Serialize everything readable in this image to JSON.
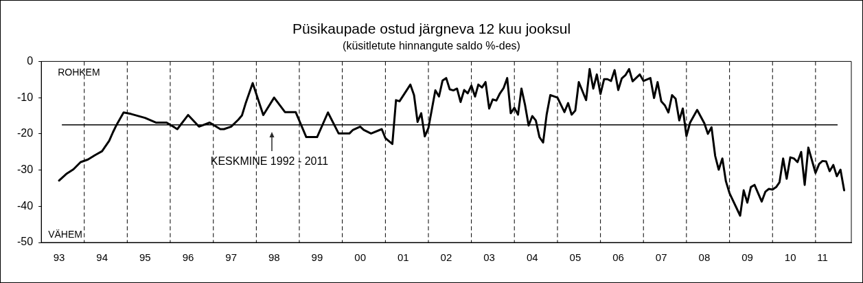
{
  "chart_data": {
    "type": "line",
    "title": "Püsikaupade ostud järgneva 12 kuu jooksul",
    "subtitle": "(küsitletute hinnangute saldo %-des)",
    "annotations": [
      "ROHKEM",
      "VÄHEM"
    ],
    "xlim": [
      "1993-01",
      "2011-11"
    ],
    "xticks": [
      {
        "value": "1993-06",
        "label": "93"
      },
      {
        "value": "1994-06",
        "label": "94"
      },
      {
        "value": "1995-06",
        "label": "95"
      },
      {
        "value": "1996-06",
        "label": "96"
      },
      {
        "value": "1997-06",
        "label": "97"
      },
      {
        "value": "1998-06",
        "label": "98"
      },
      {
        "value": "1999-06",
        "label": "99"
      },
      {
        "value": "2000-06",
        "label": "00"
      },
      {
        "value": "2001-06",
        "label": "01"
      },
      {
        "value": "2002-06",
        "label": "02"
      },
      {
        "value": "2003-06",
        "label": "03"
      },
      {
        "value": "2004-06",
        "label": "04"
      },
      {
        "value": "2005-06",
        "label": "05"
      },
      {
        "value": "2006-06",
        "label": "06"
      },
      {
        "value": "2007-06",
        "label": "07"
      },
      {
        "value": "2008-06",
        "label": "08"
      },
      {
        "value": "2009-06",
        "label": "09"
      },
      {
        "value": "2010-06",
        "label": "10"
      },
      {
        "value": "2011-03",
        "label": "11"
      }
    ],
    "ylim": [
      -50,
      0
    ],
    "yticks": [
      -50,
      -40,
      -30,
      -20,
      -10,
      0
    ],
    "legend": false,
    "marker": "none",
    "line_style": "solid",
    "ref_lines": [
      {
        "axis": "y",
        "value": -17.5,
        "label": "KESKMINE 1992 - 2011",
        "line_style": "solid",
        "color": "#000000"
      },
      {
        "axis": "x",
        "value": "1994-01",
        "line_style": "dashed",
        "color": "#000000"
      },
      {
        "axis": "x",
        "value": "1995-01",
        "line_style": "dashed",
        "color": "#000000"
      },
      {
        "axis": "x",
        "value": "1996-01",
        "line_style": "dashed",
        "color": "#000000"
      },
      {
        "axis": "x",
        "value": "1997-01",
        "line_style": "dashed",
        "color": "#000000"
      },
      {
        "axis": "x",
        "value": "1998-01",
        "line_style": "dashed",
        "color": "#000000"
      },
      {
        "axis": "x",
        "value": "1999-01",
        "line_style": "dashed",
        "color": "#000000"
      },
      {
        "axis": "x",
        "value": "2000-01",
        "line_style": "dashed",
        "color": "#000000"
      },
      {
        "axis": "x",
        "value": "2001-01",
        "line_style": "dashed",
        "color": "#000000"
      },
      {
        "axis": "x",
        "value": "2002-01",
        "line_style": "dashed",
        "color": "#000000"
      },
      {
        "axis": "x",
        "value": "2003-01",
        "line_style": "dashed",
        "color": "#000000"
      },
      {
        "axis": "x",
        "value": "2004-01",
        "line_style": "dashed",
        "color": "#000000"
      },
      {
        "axis": "x",
        "value": "2005-01",
        "line_style": "dashed",
        "color": "#000000"
      },
      {
        "axis": "x",
        "value": "2006-01",
        "line_style": "dashed",
        "color": "#000000"
      },
      {
        "axis": "x",
        "value": "2007-01",
        "line_style": "dashed",
        "color": "#000000"
      },
      {
        "axis": "x",
        "value": "2008-01",
        "line_style": "dashed",
        "color": "#000000"
      },
      {
        "axis": "x",
        "value": "2009-01",
        "line_style": "dashed",
        "color": "#000000"
      },
      {
        "axis": "x",
        "value": "2010-01",
        "line_style": "dashed",
        "color": "#000000"
      },
      {
        "axis": "x",
        "value": "2011-01",
        "line_style": "dashed",
        "color": "#000000"
      }
    ],
    "series": [
      {
        "color": "#000000",
        "x": [
          "1993-06",
          "1993-08",
          "1993-10",
          "1993-12",
          "1994-02",
          "1994-04",
          "1994-06",
          "1994-08",
          "1994-09",
          "1994-10",
          "1994-12",
          "1995-02",
          "1995-06",
          "1995-09",
          "1995-12",
          "1996-03",
          "1996-06",
          "1996-09",
          "1996-12",
          "1997-03",
          "1997-04",
          "1997-06",
          "1997-08",
          "1997-09",
          "1997-10",
          "1997-12",
          "1998-03",
          "1998-06",
          "1998-09",
          "1998-12",
          "1999-03",
          "1999-06",
          "1999-09",
          "1999-12",
          "2000-03",
          "2000-04",
          "2000-06",
          "2000-07",
          "2000-09",
          "2000-12",
          "2001-01",
          "2001-03",
          "2001-04",
          "2001-05",
          "2001-08",
          "2001-09",
          "2001-10",
          "2001-11",
          "2001-12",
          "2002-01",
          "2002-03",
          "2002-04",
          "2002-05",
          "2002-06",
          "2002-07",
          "2002-08",
          "2002-09",
          "2002-10",
          "2002-11",
          "2002-12",
          "2003-01",
          "2003-02",
          "2003-03",
          "2003-04",
          "2003-05",
          "2003-06",
          "2003-07",
          "2003-08",
          "2003-09",
          "2003-10",
          "2003-11",
          "2003-12",
          "2004-01",
          "2004-02",
          "2004-03",
          "2004-04",
          "2004-05",
          "2004-06",
          "2004-07",
          "2004-08",
          "2004-09",
          "2004-10",
          "2004-11",
          "2005-01",
          "2005-03",
          "2005-04",
          "2005-05",
          "2005-06",
          "2005-07",
          "2005-09",
          "2005-10",
          "2005-11",
          "2005-12",
          "2006-01",
          "2006-02",
          "2006-03",
          "2006-04",
          "2006-05",
          "2006-06",
          "2006-07",
          "2006-08",
          "2006-09",
          "2006-10",
          "2006-12",
          "2007-01",
          "2007-03",
          "2007-04",
          "2007-05",
          "2007-06",
          "2007-07",
          "2007-08",
          "2007-09",
          "2007-10",
          "2007-11",
          "2007-12",
          "2008-01",
          "2008-02",
          "2008-04",
          "2008-06",
          "2008-07",
          "2008-08",
          "2008-09",
          "2008-10",
          "2008-11",
          "2008-12",
          "2009-01",
          "2009-04",
          "2009-05",
          "2009-06",
          "2009-07",
          "2009-08",
          "2009-10",
          "2009-11",
          "2009-12",
          "2010-01",
          "2010-02",
          "2010-03",
          "2010-04",
          "2010-05",
          "2010-06",
          "2010-07",
          "2010-08",
          "2010-09",
          "2010-10",
          "2010-11",
          "2011-01",
          "2011-02",
          "2011-03",
          "2011-04",
          "2011-05",
          "2011-06",
          "2011-07",
          "2011-08",
          "2011-09"
        ],
        "values": [
          -32.9,
          -31.1,
          -29.8,
          -27.8,
          -27.1,
          -25.9,
          -24.8,
          -21.9,
          -19.6,
          -17.6,
          -14.1,
          -14.5,
          -15.6,
          -16.9,
          -16.9,
          -18.7,
          -14.8,
          -18,
          -16.9,
          -18.7,
          -18.7,
          -18,
          -16.1,
          -14.9,
          -11.7,
          -6,
          -14.8,
          -10,
          -14,
          -14,
          -20.9,
          -20.9,
          -14.1,
          -19.9,
          -19.9,
          -18.9,
          -18,
          -18.9,
          -19.9,
          -18.7,
          -21.2,
          -22.8,
          -10.7,
          -11,
          -6.4,
          -9.3,
          -16.7,
          -14.3,
          -20.7,
          -18.4,
          -8,
          -9.7,
          -5.3,
          -4.6,
          -7.7,
          -8,
          -7.5,
          -11.2,
          -7.9,
          -8.8,
          -6.7,
          -9.7,
          -6.4,
          -7.2,
          -5.7,
          -13,
          -10.5,
          -10.8,
          -8.8,
          -7.4,
          -4.6,
          -14.3,
          -12.8,
          -14.7,
          -7.5,
          -12.1,
          -17.7,
          -15.1,
          -16.3,
          -20.9,
          -22.4,
          -14.7,
          -9.3,
          -10,
          -14,
          -11.5,
          -14.7,
          -13.6,
          -5.7,
          -10.7,
          -2.1,
          -7.5,
          -3.6,
          -9,
          -4.9,
          -4.9,
          -5.4,
          -2.4,
          -7.9,
          -4.7,
          -3.8,
          -2.1,
          -5.5,
          -3.6,
          -5.4,
          -4.6,
          -10.1,
          -5.7,
          -11,
          -12.1,
          -14.1,
          -9.3,
          -10.3,
          -16.3,
          -13,
          -20.6,
          -16.9,
          -13.4,
          -17.1,
          -20,
          -18.2,
          -26.1,
          -29.9,
          -26.8,
          -33.1,
          -36.4,
          -42.6,
          -35.6,
          -39,
          -34.7,
          -34.1,
          -38.7,
          -36,
          -35.2,
          -35.4,
          -34.7,
          -33.4,
          -26.8,
          -32.4,
          -26.5,
          -26.8,
          -27.8,
          -25,
          -34.1,
          -23.8,
          -30.8,
          -28.3,
          -27.5,
          -27.6,
          -30.3,
          -28.6,
          -31.7,
          -29.9,
          -35.6
        ]
      }
    ]
  }
}
